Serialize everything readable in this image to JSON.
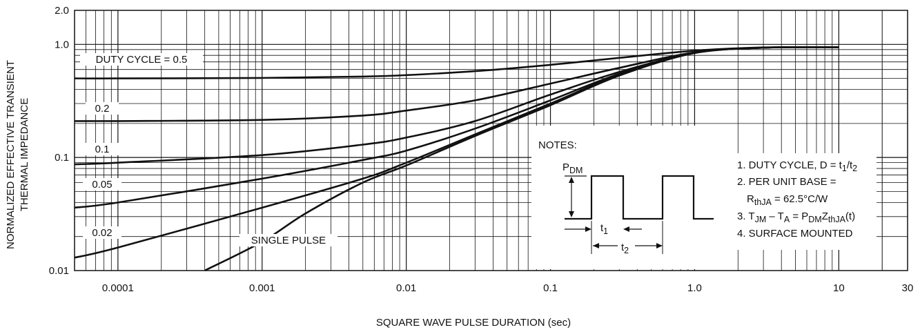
{
  "chart_data": {
    "type": "line",
    "title": "",
    "xlabel": "SQUARE WAVE PULSE DURATION (sec)",
    "ylabel_line1": "NORMALIZED EFFECTIVE TRANSIENT",
    "ylabel_line2": "THERMAL IMPEDANCE",
    "x_scale": "log",
    "y_scale": "log",
    "xlim": [
      5e-05,
      30
    ],
    "ylim": [
      0.01,
      2.0
    ],
    "grid": true,
    "x_tick_labels": [
      {
        "value": 0.0001,
        "label": "0.0001"
      },
      {
        "value": 0.001,
        "label": "0.001"
      },
      {
        "value": 0.01,
        "label": "0.01"
      },
      {
        "value": 0.1,
        "label": "0.1"
      },
      {
        "value": 1.0,
        "label": "1.0"
      },
      {
        "value": 10,
        "label": "10"
      },
      {
        "value": 30,
        "label": "30"
      }
    ],
    "y_tick_labels": [
      {
        "value": 0.01,
        "label": "0.01"
      },
      {
        "value": 0.1,
        "label": "0.1"
      },
      {
        "value": 1.0,
        "label": "1.0"
      },
      {
        "value": 2.0,
        "label": "2.0"
      }
    ],
    "series": [
      {
        "name": "DUTY CYCLE = 0.5",
        "x": [
          5e-05,
          0.0001,
          0.001,
          0.005,
          0.01,
          0.03,
          0.1,
          0.3,
          1.0,
          3.0,
          10
        ],
        "y": [
          0.5,
          0.5,
          0.505,
          0.52,
          0.535,
          0.58,
          0.66,
          0.76,
          0.88,
          0.94,
          0.945
        ]
      },
      {
        "name": "0.2",
        "x": [
          5e-05,
          0.0001,
          0.001,
          0.005,
          0.01,
          0.03,
          0.1,
          0.3,
          1.0,
          3.0,
          10
        ],
        "y": [
          0.21,
          0.21,
          0.215,
          0.235,
          0.26,
          0.32,
          0.45,
          0.62,
          0.85,
          0.935,
          0.945
        ]
      },
      {
        "name": "0.1",
        "x": [
          5e-05,
          0.0001,
          0.001,
          0.005,
          0.01,
          0.03,
          0.1,
          0.3,
          1.0,
          3.0,
          10
        ],
        "y": [
          0.087,
          0.09,
          0.105,
          0.13,
          0.15,
          0.21,
          0.36,
          0.57,
          0.84,
          0.935,
          0.945
        ]
      },
      {
        "name": "0.05",
        "x": [
          5e-05,
          0.0001,
          0.001,
          0.005,
          0.01,
          0.03,
          0.1,
          0.3,
          1.0,
          3.0,
          10
        ],
        "y": [
          0.036,
          0.04,
          0.065,
          0.095,
          0.115,
          0.18,
          0.32,
          0.55,
          0.84,
          0.935,
          0.945
        ]
      },
      {
        "name": "0.02",
        "x": [
          5e-05,
          0.0001,
          0.001,
          0.005,
          0.01,
          0.03,
          0.1,
          0.3,
          1.0,
          3.0,
          10
        ],
        "y": [
          0.013,
          0.016,
          0.036,
          0.065,
          0.09,
          0.16,
          0.3,
          0.54,
          0.84,
          0.935,
          0.945
        ]
      },
      {
        "name": "SINGLE PULSE",
        "x": [
          0.0004,
          0.001,
          0.002,
          0.005,
          0.01,
          0.03,
          0.1,
          0.3,
          1.0,
          3.0,
          10
        ],
        "y": [
          0.01,
          0.018,
          0.032,
          0.06,
          0.085,
          0.155,
          0.29,
          0.53,
          0.84,
          0.935,
          0.945
        ]
      }
    ],
    "notes": {
      "heading": "NOTES:",
      "pdm_main": "P",
      "pdm_sub": "DM",
      "t1_main": "t",
      "t1_sub": "1",
      "t2_main": "t",
      "t2_sub": "2",
      "note1_a": "1. DUTY CYCLE, D = t",
      "note1_sub1": "1",
      "note1_b": "/t",
      "note1_sub2": "2",
      "note2_a": "2. PER UNIT BASE =",
      "note2_b_main": "R",
      "note2_b_sub": "thJA",
      "note2_b_rest": " = 62.5°C/W",
      "note3_a": "3. T",
      "note3_sub1": "JM",
      "note3_b": " – T",
      "note3_sub2": "A",
      "note3_c": " = P",
      "note3_sub3": "DM",
      "note3_d": "Z",
      "note3_sub4": "thJA",
      "note3_e": "(t)",
      "note4": "4. SURFACE MOUNTED"
    }
  }
}
